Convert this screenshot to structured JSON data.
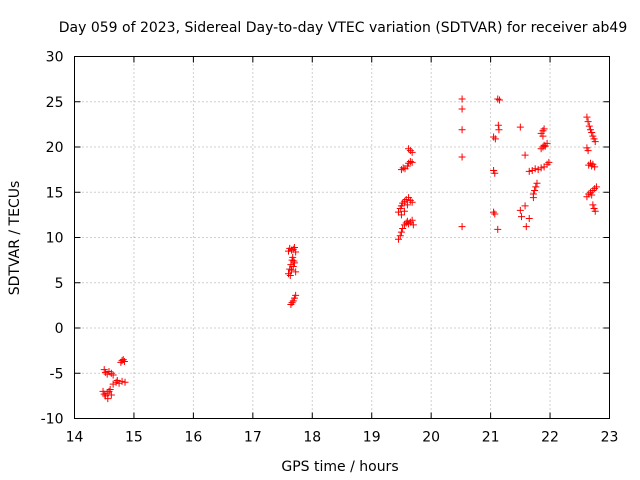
{
  "chart_data": {
    "type": "scatter",
    "title": "Day 059 of 2023, Sidereal Day-to-day VTEC variation (SDTVAR) for receiver ab49",
    "xlabel": "GPS time / hours",
    "ylabel": "SDTVAR / TECUs",
    "xlim": [
      14,
      23
    ],
    "ylim": [
      -10,
      30
    ],
    "xticks": [
      "14",
      "15",
      "16",
      "17",
      "18",
      "19",
      "20",
      "21",
      "22",
      "23"
    ],
    "yticks": [
      "-10",
      "-5",
      "0",
      "5",
      "10",
      "15",
      "20",
      "25",
      "30"
    ],
    "grid": true,
    "marker": "+",
    "series": [
      {
        "name": "SDTVAR",
        "color": "#ff0000",
        "points": [
          [
            14.5,
            -4.6
          ],
          [
            14.52,
            -4.9
          ],
          [
            14.55,
            -5.1
          ],
          [
            14.58,
            -4.8
          ],
          [
            14.62,
            -5.0
          ],
          [
            14.65,
            -5.2
          ],
          [
            14.48,
            -7.0
          ],
          [
            14.5,
            -7.3
          ],
          [
            14.52,
            -7.5
          ],
          [
            14.55,
            -7.2
          ],
          [
            14.58,
            -7.0
          ],
          [
            14.6,
            -6.8
          ],
          [
            14.62,
            -7.4
          ],
          [
            14.56,
            -7.8
          ],
          [
            14.65,
            -6.2
          ],
          [
            14.7,
            -6.0
          ],
          [
            14.75,
            -6.1
          ],
          [
            14.8,
            -5.9
          ],
          [
            14.85,
            -6.0
          ],
          [
            14.72,
            -5.8
          ],
          [
            14.78,
            -3.8
          ],
          [
            14.8,
            -3.6
          ],
          [
            14.82,
            -3.5
          ],
          [
            14.84,
            -3.7
          ],
          [
            17.6,
            8.5
          ],
          [
            17.62,
            8.8
          ],
          [
            17.65,
            8.6
          ],
          [
            17.68,
            8.7
          ],
          [
            17.7,
            8.9
          ],
          [
            17.72,
            8.4
          ],
          [
            17.6,
            6.0
          ],
          [
            17.62,
            6.5
          ],
          [
            17.64,
            7.0
          ],
          [
            17.66,
            7.5
          ],
          [
            17.68,
            6.8
          ],
          [
            17.7,
            7.2
          ],
          [
            17.72,
            6.2
          ],
          [
            17.63,
            5.8
          ],
          [
            17.67,
            7.8
          ],
          [
            17.65,
            6.4
          ],
          [
            17.69,
            7.4
          ],
          [
            17.66,
            2.8
          ],
          [
            17.68,
            3.0
          ],
          [
            17.7,
            3.3
          ],
          [
            17.72,
            3.6
          ],
          [
            17.64,
            2.6
          ],
          [
            19.45,
            9.8
          ],
          [
            19.48,
            10.2
          ],
          [
            19.5,
            10.6
          ],
          [
            19.52,
            11.0
          ],
          [
            19.55,
            11.4
          ],
          [
            19.58,
            11.6
          ],
          [
            19.6,
            11.8
          ],
          [
            19.62,
            11.5
          ],
          [
            19.65,
            11.7
          ],
          [
            19.68,
            11.9
          ],
          [
            19.7,
            11.4
          ],
          [
            19.45,
            12.8
          ],
          [
            19.48,
            13.2
          ],
          [
            19.5,
            13.5
          ],
          [
            19.52,
            13.8
          ],
          [
            19.55,
            14.0
          ],
          [
            19.58,
            14.2
          ],
          [
            19.6,
            13.6
          ],
          [
            19.62,
            14.4
          ],
          [
            19.65,
            14.1
          ],
          [
            19.68,
            13.9
          ],
          [
            19.55,
            12.9
          ],
          [
            19.5,
            12.5
          ],
          [
            19.5,
            17.5
          ],
          [
            19.53,
            17.7
          ],
          [
            19.56,
            17.6
          ],
          [
            19.6,
            17.9
          ],
          [
            19.62,
            18.2
          ],
          [
            19.65,
            18.4
          ],
          [
            19.68,
            18.3
          ],
          [
            19.62,
            19.8
          ],
          [
            19.65,
            19.6
          ],
          [
            19.68,
            19.4
          ],
          [
            20.52,
            25.3
          ],
          [
            20.52,
            24.2
          ],
          [
            20.52,
            21.9
          ],
          [
            20.52,
            18.9
          ],
          [
            20.52,
            11.2
          ],
          [
            21.05,
            21.1
          ],
          [
            21.08,
            20.9
          ],
          [
            21.05,
            17.4
          ],
          [
            21.07,
            17.1
          ],
          [
            21.05,
            12.8
          ],
          [
            21.07,
            12.6
          ],
          [
            21.12,
            25.3
          ],
          [
            21.15,
            25.2
          ],
          [
            21.13,
            22.4
          ],
          [
            21.14,
            21.9
          ],
          [
            21.12,
            10.9
          ],
          [
            21.5,
            22.2
          ],
          [
            21.5,
            13.0
          ],
          [
            21.52,
            12.3
          ],
          [
            21.58,
            13.5
          ],
          [
            21.6,
            11.2
          ],
          [
            21.58,
            19.1
          ],
          [
            21.65,
            12.1
          ],
          [
            21.65,
            17.3
          ],
          [
            21.7,
            17.4
          ],
          [
            21.75,
            17.6
          ],
          [
            21.8,
            17.5
          ],
          [
            21.85,
            17.7
          ],
          [
            21.9,
            17.8
          ],
          [
            21.72,
            14.8
          ],
          [
            21.74,
            15.2
          ],
          [
            21.76,
            15.6
          ],
          [
            21.78,
            16.0
          ],
          [
            21.72,
            14.4
          ],
          [
            21.85,
            19.8
          ],
          [
            21.88,
            20.0
          ],
          [
            21.9,
            20.2
          ],
          [
            21.95,
            20.4
          ],
          [
            21.92,
            20.1
          ],
          [
            21.85,
            21.5
          ],
          [
            21.88,
            21.8
          ],
          [
            21.9,
            22.0
          ],
          [
            21.88,
            21.2
          ],
          [
            21.95,
            18.1
          ],
          [
            21.98,
            18.3
          ],
          [
            22.62,
            23.3
          ],
          [
            22.64,
            22.8
          ],
          [
            22.66,
            22.3
          ],
          [
            22.68,
            21.9
          ],
          [
            22.7,
            21.6
          ],
          [
            22.72,
            21.2
          ],
          [
            22.74,
            20.9
          ],
          [
            22.76,
            20.6
          ],
          [
            22.62,
            19.9
          ],
          [
            22.64,
            19.6
          ],
          [
            22.65,
            18.0
          ],
          [
            22.68,
            18.2
          ],
          [
            22.7,
            17.9
          ],
          [
            22.72,
            18.1
          ],
          [
            22.75,
            17.8
          ],
          [
            22.62,
            14.5
          ],
          [
            22.65,
            14.8
          ],
          [
            22.68,
            15.0
          ],
          [
            22.7,
            14.7
          ],
          [
            22.72,
            15.2
          ],
          [
            22.75,
            15.4
          ],
          [
            22.78,
            15.6
          ],
          [
            22.72,
            13.6
          ],
          [
            22.74,
            13.2
          ],
          [
            22.76,
            12.9
          ]
        ]
      }
    ]
  }
}
